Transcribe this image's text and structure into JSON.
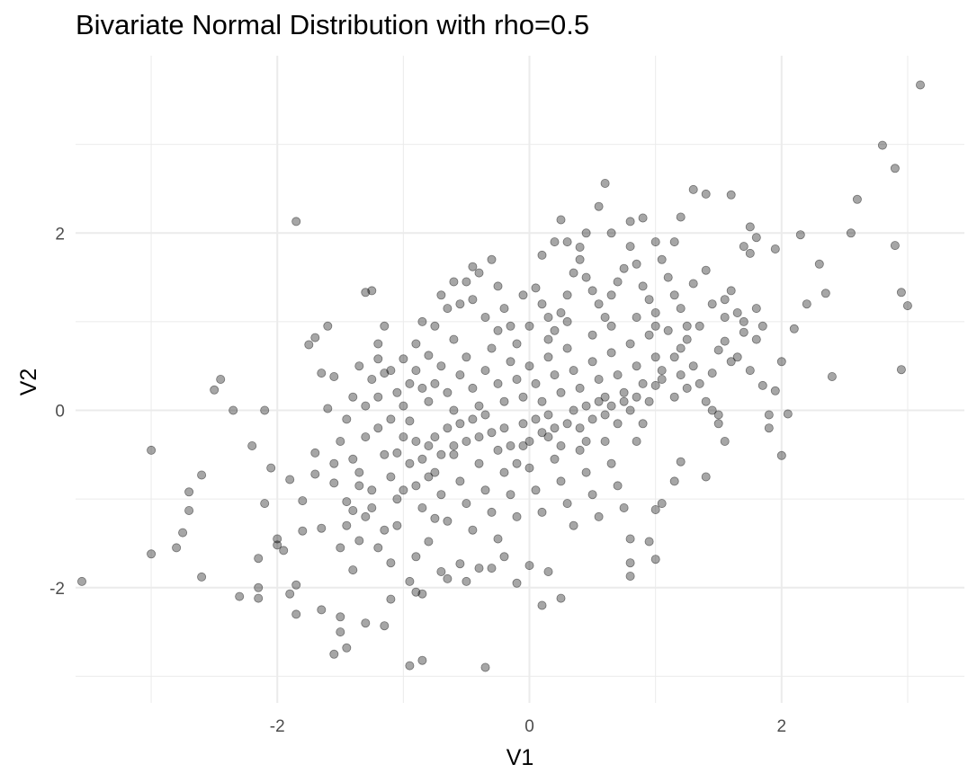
{
  "chart_data": {
    "type": "scatter",
    "title": "Bivariate Normal Distribution with rho=0.5",
    "xlabel": "V1",
    "ylabel": "V2",
    "xlim": [
      -3.6,
      3.45
    ],
    "ylim": [
      -3.3,
      4.0
    ],
    "x_ticks": [
      -2,
      0,
      2
    ],
    "y_ticks": [
      -2,
      0,
      2
    ],
    "x_tick_labels": [
      "-2",
      "0",
      "2"
    ],
    "y_tick_labels": [
      "-2",
      "0",
      "2"
    ],
    "x_minor_gridlines": [
      -3,
      -1,
      1,
      3
    ],
    "y_minor_gridlines": [
      -3,
      -1,
      1,
      3
    ],
    "grid": true,
    "theme": "minimal",
    "point_color": "#000000",
    "point_alpha": 0.35,
    "gridline_color": "#ebebeb",
    "points": [
      [
        3.1,
        3.67
      ],
      [
        2.8,
        2.99
      ],
      [
        2.9,
        2.73
      ],
      [
        2.9,
        1.86
      ],
      [
        2.95,
        1.33
      ],
      [
        3.0,
        1.18
      ],
      [
        2.95,
        0.46
      ],
      [
        2.55,
        2.0
      ],
      [
        2.6,
        2.38
      ],
      [
        2.3,
        1.65
      ],
      [
        2.35,
        1.32
      ],
      [
        2.2,
        1.2
      ],
      [
        2.15,
        1.98
      ],
      [
        2.1,
        0.92
      ],
      [
        2.4,
        0.38
      ],
      [
        2.05,
        -0.04
      ],
      [
        2.0,
        -0.51
      ],
      [
        1.95,
        0.22
      ],
      [
        1.9,
        -0.05
      ],
      [
        1.9,
        -0.2
      ],
      [
        2.0,
        0.55
      ],
      [
        1.85,
        0.28
      ],
      [
        1.3,
        2.49
      ],
      [
        1.4,
        2.44
      ],
      [
        1.6,
        2.43
      ],
      [
        1.75,
        2.07
      ],
      [
        1.8,
        1.95
      ],
      [
        1.7,
        1.85
      ],
      [
        1.75,
        1.77
      ],
      [
        1.95,
        1.82
      ],
      [
        1.2,
        2.18
      ],
      [
        1.15,
        1.9
      ],
      [
        1.0,
        1.9
      ],
      [
        0.9,
        2.17
      ],
      [
        0.8,
        2.13
      ],
      [
        0.55,
        2.3
      ],
      [
        0.6,
        2.56
      ],
      [
        0.65,
        2.0
      ],
      [
        -1.85,
        2.13
      ],
      [
        0.25,
        2.15
      ],
      [
        0.3,
        1.9
      ],
      [
        0.4,
        1.84
      ],
      [
        0.45,
        2.0
      ],
      [
        0.2,
        1.9
      ],
      [
        0.1,
        1.75
      ],
      [
        -3.55,
        -1.93
      ],
      [
        -3.0,
        -0.45
      ],
      [
        -3.0,
        -1.62
      ],
      [
        -2.8,
        -1.55
      ],
      [
        -2.75,
        -1.38
      ],
      [
        -2.7,
        -1.13
      ],
      [
        -2.7,
        -0.92
      ],
      [
        -2.6,
        -0.73
      ],
      [
        -2.6,
        -1.88
      ],
      [
        -2.5,
        0.23
      ],
      [
        -2.45,
        0.35
      ],
      [
        -2.35,
        0.0
      ],
      [
        -2.3,
        -2.1
      ],
      [
        -2.2,
        -0.4
      ],
      [
        -2.15,
        -2.0
      ],
      [
        -2.15,
        -2.12
      ],
      [
        -2.15,
        -1.67
      ],
      [
        -2.1,
        -1.05
      ],
      [
        -2.1,
        0.0
      ],
      [
        -2.05,
        -0.65
      ],
      [
        -2.0,
        -1.45
      ],
      [
        -2.0,
        -1.52
      ],
      [
        -1.95,
        -1.58
      ],
      [
        -1.9,
        -0.78
      ],
      [
        -1.9,
        -2.07
      ],
      [
        -1.85,
        -1.97
      ],
      [
        -1.85,
        -2.3
      ],
      [
        -1.8,
        -1.36
      ],
      [
        -1.8,
        -1.02
      ],
      [
        -1.75,
        0.74
      ],
      [
        -1.7,
        0.82
      ],
      [
        -1.7,
        -0.48
      ],
      [
        -1.7,
        -0.72
      ],
      [
        -1.65,
        -1.33
      ],
      [
        -1.65,
        -2.25
      ],
      [
        -1.55,
        -2.75
      ],
      [
        -1.55,
        -0.82
      ],
      [
        -1.5,
        -2.33
      ],
      [
        -1.5,
        -2.5
      ],
      [
        -1.45,
        -2.68
      ],
      [
        -1.45,
        -1.03
      ],
      [
        -1.4,
        -1.13
      ],
      [
        -1.35,
        -1.47
      ],
      [
        -1.3,
        -2.4
      ],
      [
        -1.25,
        -1.1
      ],
      [
        -1.3,
        1.33
      ],
      [
        -1.25,
        1.35
      ],
      [
        -1.2,
        0.58
      ],
      [
        -1.15,
        0.42
      ],
      [
        -1.15,
        -2.43
      ],
      [
        -1.1,
        -2.13
      ],
      [
        -1.1,
        -1.72
      ],
      [
        -1.05,
        -1.3
      ],
      [
        -1.05,
        -0.48
      ],
      [
        -1.0,
        -0.9
      ],
      [
        -0.95,
        -1.93
      ],
      [
        -0.9,
        -2.05
      ],
      [
        -0.85,
        -2.82
      ],
      [
        -0.95,
        -2.88
      ],
      [
        -0.9,
        -1.65
      ],
      [
        -0.85,
        -2.07
      ],
      [
        -0.8,
        -1.48
      ],
      [
        -0.75,
        -1.22
      ],
      [
        -0.7,
        -1.82
      ],
      [
        -0.65,
        -1.9
      ],
      [
        -0.55,
        -1.73
      ],
      [
        -0.5,
        -1.93
      ],
      [
        -0.35,
        -2.9
      ],
      [
        -0.4,
        -1.78
      ],
      [
        -0.3,
        -1.78
      ],
      [
        -0.2,
        -1.65
      ],
      [
        -0.1,
        -1.95
      ],
      [
        0.15,
        -1.82
      ],
      [
        0.0,
        -1.75
      ],
      [
        0.1,
        -2.2
      ],
      [
        0.25,
        -2.12
      ],
      [
        0.8,
        -1.45
      ],
      [
        0.8,
        -1.72
      ],
      [
        0.8,
        -1.87
      ],
      [
        0.95,
        -1.48
      ],
      [
        1.0,
        -1.68
      ],
      [
        1.0,
        -1.12
      ],
      [
        1.05,
        -1.05
      ],
      [
        1.15,
        -0.8
      ],
      [
        1.2,
        -0.58
      ],
      [
        1.4,
        -0.75
      ],
      [
        1.5,
        -0.15
      ],
      [
        1.55,
        -0.35
      ],
      [
        1.45,
        0.42
      ],
      [
        1.6,
        0.55
      ],
      [
        1.5,
        0.68
      ],
      [
        1.55,
        0.78
      ],
      [
        1.7,
        0.88
      ],
      [
        1.8,
        0.8
      ],
      [
        1.7,
        1.0
      ],
      [
        1.6,
        1.35
      ],
      [
        1.45,
        1.2
      ],
      [
        1.4,
        1.58
      ],
      [
        1.3,
        1.43
      ],
      [
        1.25,
        0.95
      ],
      [
        1.2,
        0.7
      ],
      [
        1.15,
        0.6
      ],
      [
        1.05,
        0.45
      ],
      [
        1.0,
        0.28
      ],
      [
        0.95,
        0.1
      ],
      [
        0.9,
        -0.15
      ],
      [
        0.85,
        -0.35
      ],
      [
        -1.6,
        0.95
      ],
      [
        -1.55,
        0.38
      ],
      [
        -1.65,
        0.42
      ],
      [
        -1.6,
        0.02
      ],
      [
        -1.4,
        0.15
      ],
      [
        -1.3,
        0.05
      ],
      [
        -1.2,
        0.75
      ],
      [
        -1.15,
        0.95
      ],
      [
        -1.05,
        0.2
      ],
      [
        -1.0,
        0.58
      ],
      [
        -0.95,
        -0.12
      ],
      [
        -0.9,
        0.45
      ],
      [
        -0.85,
        0.25
      ],
      [
        -0.8,
        0.62
      ],
      [
        -0.75,
        0.95
      ],
      [
        -0.7,
        1.3
      ],
      [
        -0.65,
        1.15
      ],
      [
        -0.6,
        0.8
      ],
      [
        -0.55,
        1.2
      ],
      [
        -0.5,
        1.45
      ],
      [
        -0.45,
        1.62
      ],
      [
        -0.4,
        1.55
      ],
      [
        -0.3,
        1.7
      ],
      [
        -0.25,
        1.4
      ],
      [
        -0.2,
        1.15
      ],
      [
        -0.15,
        0.95
      ],
      [
        -0.1,
        0.75
      ],
      [
        -0.05,
        1.3
      ],
      [
        0.05,
        1.38
      ],
      [
        0.1,
        1.2
      ],
      [
        0.15,
        1.05
      ],
      [
        0.2,
        0.9
      ],
      [
        0.25,
        1.1
      ],
      [
        0.3,
        1.3
      ],
      [
        0.35,
        1.55
      ],
      [
        0.4,
        1.7
      ],
      [
        0.45,
        1.5
      ],
      [
        0.5,
        1.35
      ],
      [
        0.55,
        1.2
      ],
      [
        0.6,
        1.05
      ],
      [
        0.65,
        1.3
      ],
      [
        0.7,
        1.45
      ],
      [
        0.75,
        1.6
      ],
      [
        0.8,
        1.85
      ],
      [
        0.85,
        1.65
      ],
      [
        0.9,
        1.4
      ],
      [
        0.95,
        1.25
      ],
      [
        1.0,
        1.1
      ],
      [
        1.05,
        1.7
      ],
      [
        1.1,
        1.5
      ],
      [
        1.15,
        1.3
      ],
      [
        1.2,
        1.15
      ],
      [
        -1.2,
        -0.2
      ],
      [
        -1.15,
        -0.5
      ],
      [
        -1.1,
        -0.75
      ],
      [
        -1.05,
        -1.0
      ],
      [
        -1.0,
        -0.3
      ],
      [
        -0.95,
        -0.6
      ],
      [
        -0.9,
        -0.85
      ],
      [
        -0.85,
        -1.1
      ],
      [
        -0.8,
        -0.4
      ],
      [
        -0.75,
        -0.7
      ],
      [
        -0.7,
        -0.95
      ],
      [
        -0.65,
        -1.25
      ],
      [
        -0.6,
        -0.5
      ],
      [
        -0.55,
        -0.8
      ],
      [
        -0.5,
        -1.05
      ],
      [
        -0.45,
        -1.35
      ],
      [
        -0.4,
        -0.6
      ],
      [
        -0.35,
        -0.9
      ],
      [
        -0.3,
        -1.15
      ],
      [
        -0.25,
        -1.45
      ],
      [
        -0.2,
        -0.7
      ],
      [
        -0.15,
        -0.95
      ],
      [
        -0.1,
        -1.2
      ],
      [
        -0.05,
        -0.4
      ],
      [
        0.0,
        -0.65
      ],
      [
        0.05,
        -0.9
      ],
      [
        0.1,
        -1.15
      ],
      [
        0.15,
        -0.3
      ],
      [
        0.2,
        -0.55
      ],
      [
        0.25,
        -0.8
      ],
      [
        0.3,
        -1.05
      ],
      [
        0.35,
        -1.3
      ],
      [
        0.4,
        -0.45
      ],
      [
        0.45,
        -0.7
      ],
      [
        0.5,
        -0.95
      ],
      [
        0.55,
        -1.2
      ],
      [
        0.6,
        -0.35
      ],
      [
        0.65,
        -0.6
      ],
      [
        0.7,
        -0.85
      ],
      [
        0.75,
        -1.1
      ],
      [
        -1.4,
        -0.55
      ],
      [
        -1.35,
        -0.85
      ],
      [
        -1.3,
        -0.3
      ],
      [
        -1.45,
        -0.1
      ],
      [
        -1.5,
        -0.35
      ],
      [
        -1.55,
        -0.6
      ],
      [
        -1.35,
        -0.7
      ],
      [
        -1.25,
        -0.9
      ],
      [
        -1.3,
        -1.2
      ],
      [
        -1.45,
        -1.3
      ],
      [
        -1.5,
        -1.55
      ],
      [
        -1.4,
        -1.8
      ],
      [
        -1.2,
        -1.55
      ],
      [
        -1.15,
        -1.35
      ],
      [
        -0.8,
        0.1
      ],
      [
        -0.75,
        0.3
      ],
      [
        -0.7,
        0.5
      ],
      [
        -0.65,
        0.2
      ],
      [
        -0.6,
        0.0
      ],
      [
        -0.55,
        0.4
      ],
      [
        -0.5,
        0.6
      ],
      [
        -0.45,
        0.25
      ],
      [
        -0.4,
        0.05
      ],
      [
        -0.35,
        0.45
      ],
      [
        -0.3,
        0.7
      ],
      [
        -0.25,
        0.3
      ],
      [
        -0.2,
        0.1
      ],
      [
        -0.15,
        0.55
      ],
      [
        -0.1,
        0.35
      ],
      [
        -0.05,
        0.15
      ],
      [
        0.0,
        0.5
      ],
      [
        0.05,
        0.3
      ],
      [
        0.1,
        0.1
      ],
      [
        0.15,
        0.6
      ],
      [
        0.2,
        0.4
      ],
      [
        0.25,
        0.2
      ],
      [
        0.3,
        0.7
      ],
      [
        0.35,
        0.45
      ],
      [
        0.4,
        0.25
      ],
      [
        0.45,
        0.05
      ],
      [
        0.5,
        0.55
      ],
      [
        0.55,
        0.35
      ],
      [
        0.6,
        0.15
      ],
      [
        0.65,
        0.65
      ],
      [
        0.7,
        0.4
      ],
      [
        0.75,
        0.2
      ],
      [
        0.8,
        0.75
      ],
      [
        0.85,
        0.5
      ],
      [
        0.9,
        0.3
      ],
      [
        0.95,
        0.85
      ],
      [
        1.0,
        0.6
      ],
      [
        1.05,
        0.35
      ],
      [
        1.1,
        0.9
      ],
      [
        1.15,
        0.15
      ],
      [
        1.2,
        0.4
      ],
      [
        1.25,
        0.25
      ],
      [
        1.3,
        0.5
      ],
      [
        1.35,
        0.3
      ],
      [
        1.4,
        0.1
      ],
      [
        1.45,
        0.0
      ],
      [
        1.5,
        -0.05
      ],
      [
        -0.9,
        -0.35
      ],
      [
        -0.85,
        -0.55
      ],
      [
        -0.8,
        -0.75
      ],
      [
        -0.75,
        -0.3
      ],
      [
        -0.7,
        -0.5
      ],
      [
        -0.65,
        -0.2
      ],
      [
        -0.6,
        -0.4
      ],
      [
        -0.55,
        -0.15
      ],
      [
        -0.5,
        -0.35
      ],
      [
        -0.45,
        -0.1
      ],
      [
        -0.4,
        -0.3
      ],
      [
        -0.35,
        -0.05
      ],
      [
        -0.3,
        -0.25
      ],
      [
        -0.25,
        -0.45
      ],
      [
        -0.2,
        -0.2
      ],
      [
        -0.15,
        -0.4
      ],
      [
        -0.1,
        -0.6
      ],
      [
        -0.05,
        -0.15
      ],
      [
        0.0,
        -0.35
      ],
      [
        0.05,
        -0.1
      ],
      [
        0.1,
        -0.25
      ],
      [
        0.15,
        -0.05
      ],
      [
        0.2,
        -0.2
      ],
      [
        0.25,
        -0.4
      ],
      [
        0.3,
        -0.15
      ],
      [
        0.35,
        0.0
      ],
      [
        0.4,
        -0.2
      ],
      [
        0.45,
        -0.35
      ],
      [
        0.5,
        -0.1
      ],
      [
        0.55,
        0.1
      ],
      [
        0.6,
        -0.05
      ],
      [
        0.65,
        0.05
      ],
      [
        0.7,
        -0.15
      ],
      [
        0.75,
        0.1
      ],
      [
        0.8,
        0.0
      ],
      [
        0.85,
        0.15
      ],
      [
        -1.0,
        0.05
      ],
      [
        -0.95,
        0.3
      ],
      [
        -1.1,
        -0.1
      ],
      [
        -1.2,
        0.15
      ],
      [
        -1.25,
        0.35
      ],
      [
        -1.35,
        0.5
      ],
      [
        -1.1,
        0.45
      ],
      [
        -0.9,
        0.75
      ],
      [
        -0.85,
        1.0
      ],
      [
        -0.6,
        1.45
      ],
      [
        -0.45,
        1.25
      ],
      [
        -0.35,
        1.05
      ],
      [
        -0.25,
        0.9
      ],
      [
        0.0,
        0.95
      ],
      [
        0.15,
        0.8
      ],
      [
        0.3,
        1.0
      ],
      [
        0.5,
        0.85
      ],
      [
        0.65,
        0.95
      ],
      [
        0.85,
        1.05
      ],
      [
        1.0,
        0.95
      ],
      [
        1.25,
        0.8
      ],
      [
        1.35,
        0.95
      ],
      [
        1.55,
        1.05
      ],
      [
        1.65,
        0.6
      ],
      [
        1.75,
        0.45
      ],
      [
        1.85,
        0.95
      ],
      [
        1.8,
        1.15
      ],
      [
        1.65,
        1.1
      ],
      [
        1.55,
        1.25
      ]
    ]
  }
}
